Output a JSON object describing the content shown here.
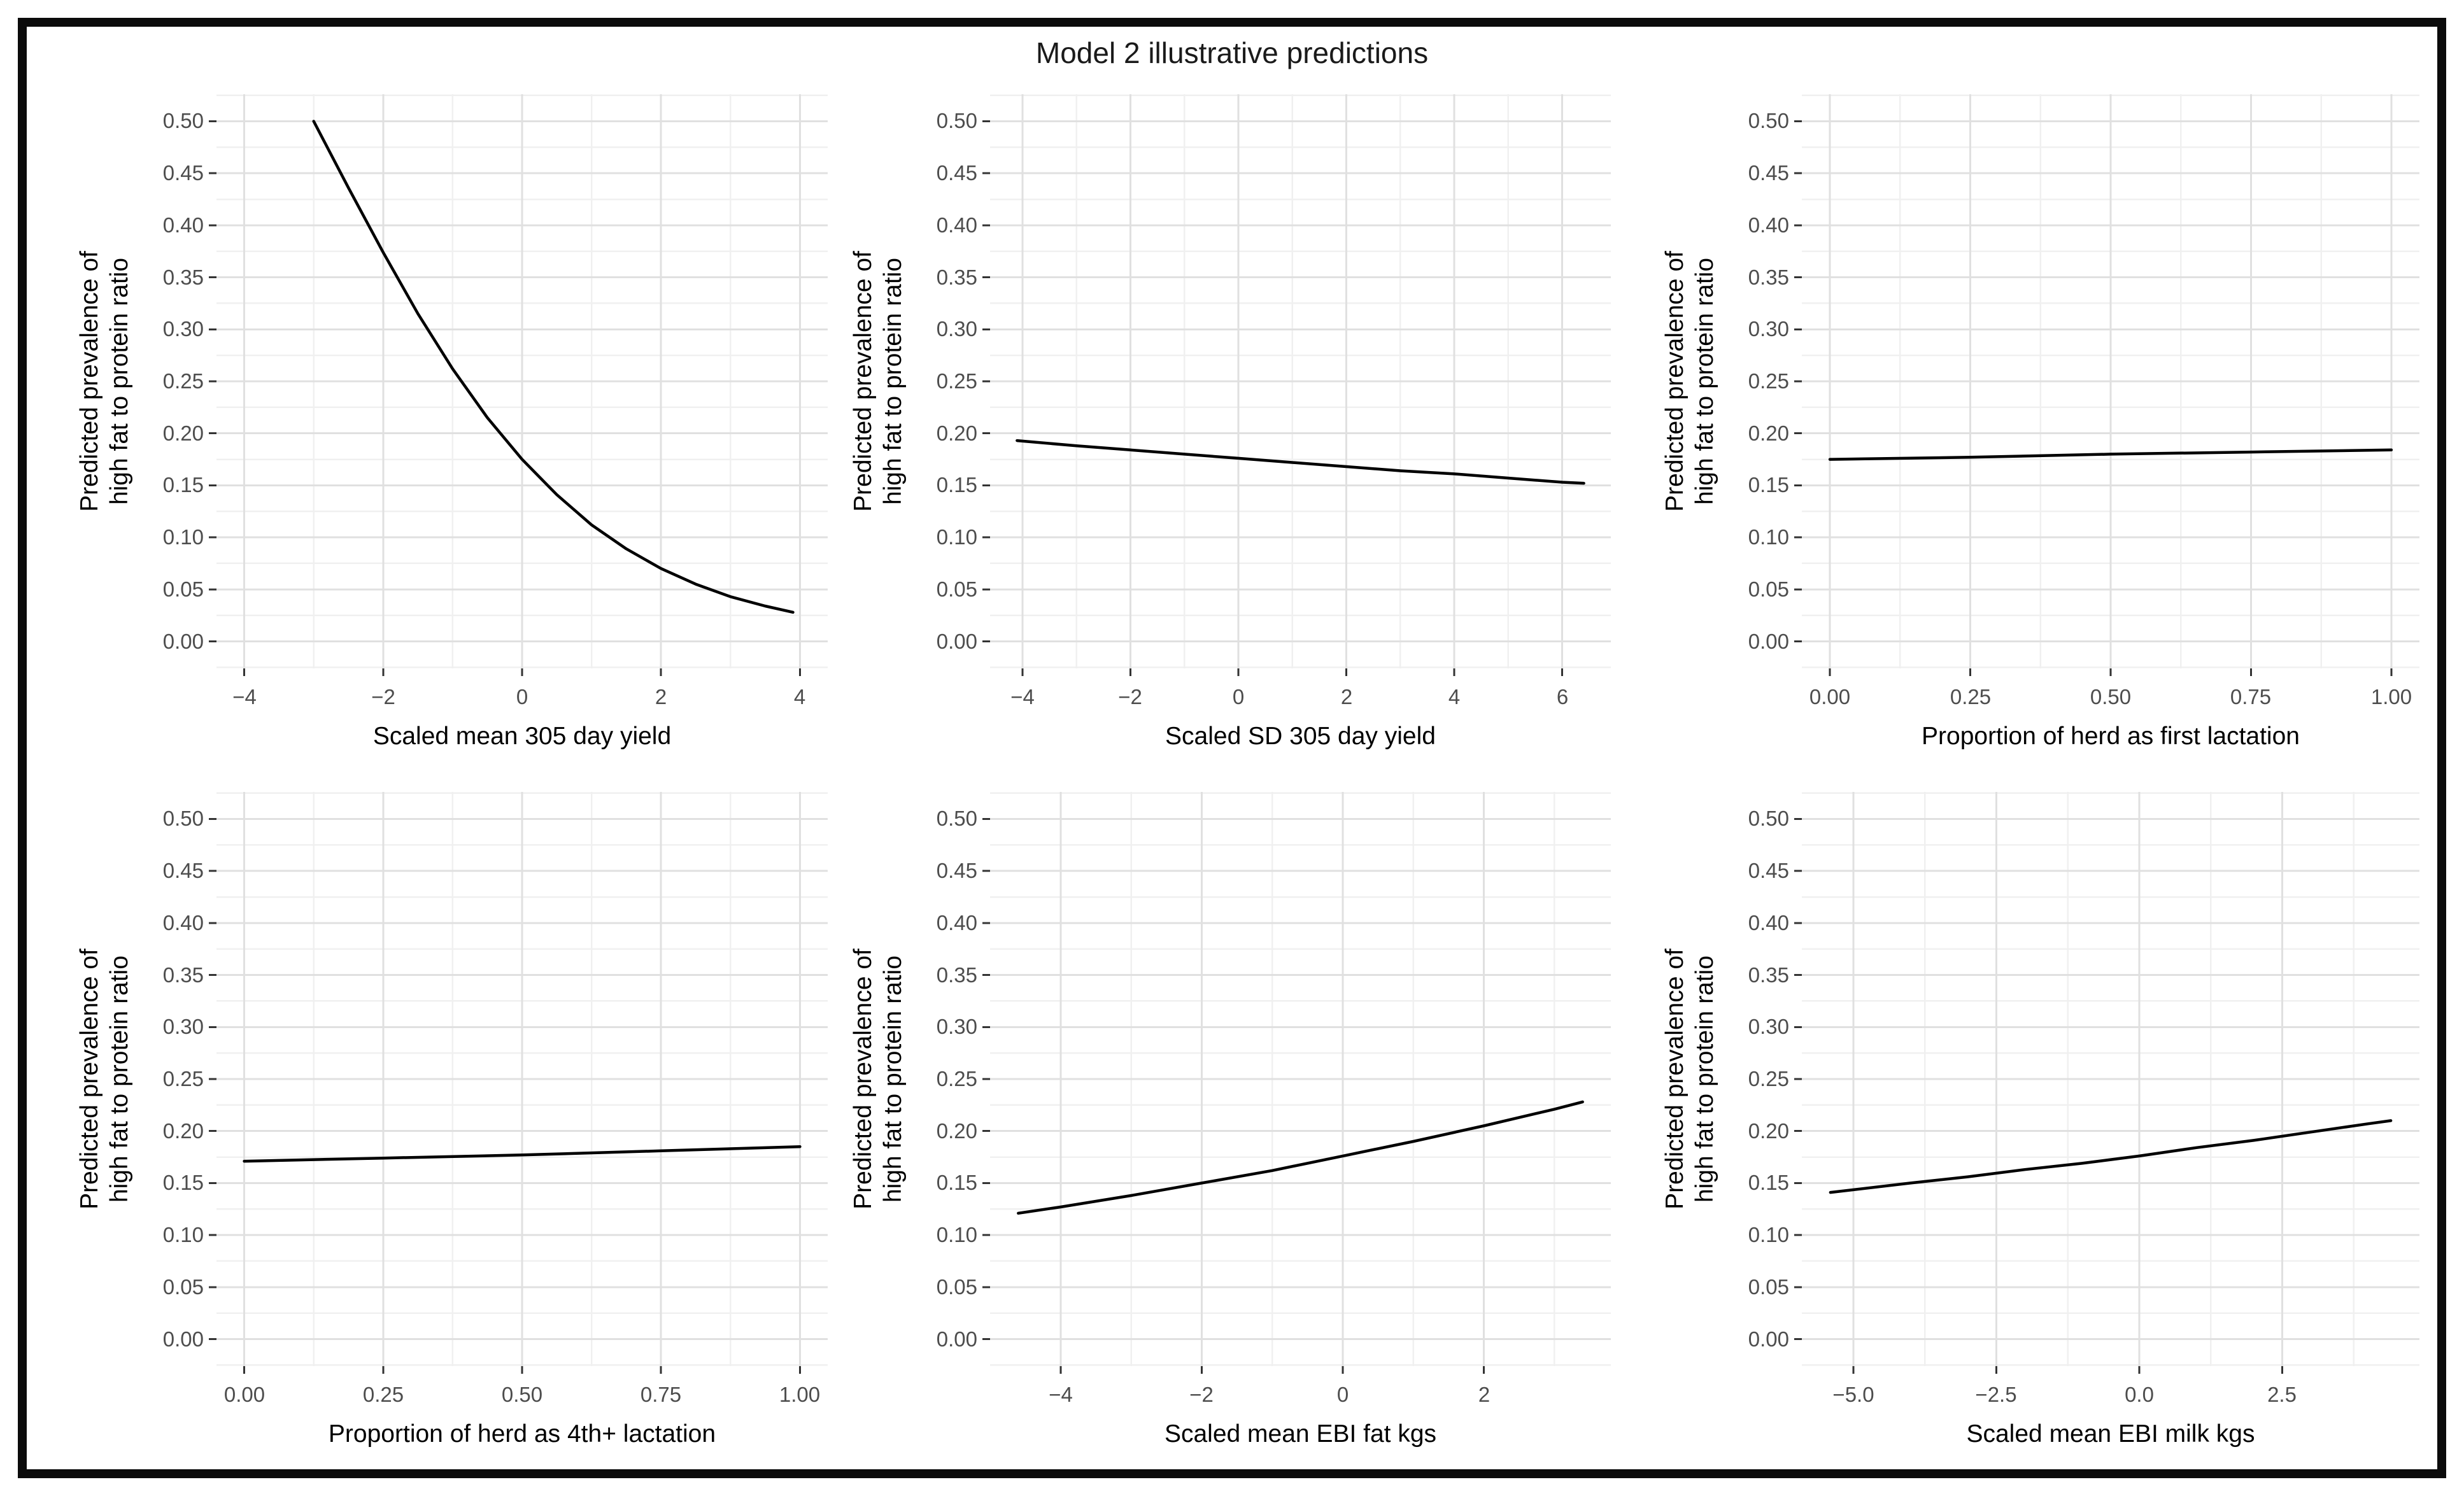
{
  "title": "Model 2 illustrative predictions",
  "colors": {
    "frame": "#0b0b0b",
    "background": "#ffffff",
    "grid_major": "#e0e0e0",
    "grid_minor": "#f0f0f0",
    "axis_tick": "#333333",
    "tick_label": "#4d4d4d",
    "axis_title": "#000000",
    "line": "#000000"
  },
  "y_axis": {
    "title": "Predicted prevalence of high fat to protein ratio",
    "title_lines": [
      "Predicted prevalence of",
      "high fat to protein ratio"
    ],
    "tick_values": [
      0.0,
      0.05,
      0.1,
      0.15,
      0.2,
      0.25,
      0.3,
      0.35,
      0.4,
      0.45,
      0.5
    ],
    "tick_labels": [
      "0.00",
      "0.05",
      "0.10",
      "0.15",
      "0.20",
      "0.25",
      "0.30",
      "0.35",
      "0.40",
      "0.45",
      "0.50"
    ],
    "range": [
      -0.026,
      0.526
    ],
    "minor_step": 0.025
  },
  "chart_data": [
    {
      "type": "line",
      "xlabel": "Scaled mean 305 day yield",
      "ylabel": "Predicted prevalence of high fat to protein ratio",
      "x_range": [
        -4.4,
        4.4
      ],
      "x_major": {
        "values": [
          -4,
          -2,
          0,
          2,
          4
        ],
        "labels": [
          "−4",
          "−2",
          "0",
          "2",
          "4"
        ]
      },
      "x_minor": [
        -3,
        -1,
        1,
        3
      ],
      "x": [
        -3,
        -2.5,
        -2,
        -1.5,
        -1,
        -0.5,
        0,
        0.5,
        1,
        1.5,
        2,
        2.5,
        3,
        3.5,
        3.9
      ],
      "y": [
        0.5,
        0.436,
        0.374,
        0.315,
        0.262,
        0.215,
        0.175,
        0.141,
        0.112,
        0.089,
        0.07,
        0.055,
        0.043,
        0.034,
        0.028
      ]
    },
    {
      "type": "line",
      "xlabel": "Scaled SD 305 day yield",
      "ylabel": "Predicted prevalence of high fat to protein ratio",
      "x_range": [
        -4.6,
        6.9
      ],
      "x_major": {
        "values": [
          -4,
          -2,
          0,
          2,
          4,
          6
        ],
        "labels": [
          "−4",
          "−2",
          "0",
          "2",
          "4",
          "6"
        ]
      },
      "x_minor": [
        -3,
        -1,
        1,
        3,
        5
      ],
      "x": [
        -4.1,
        -3,
        -2,
        -1,
        0,
        1,
        2,
        3,
        4,
        5,
        6,
        6.4
      ],
      "y": [
        0.193,
        0.188,
        0.184,
        0.18,
        0.176,
        0.172,
        0.168,
        0.164,
        0.161,
        0.157,
        0.153,
        0.152
      ]
    },
    {
      "type": "line",
      "xlabel": "Proportion of herd as first lactation",
      "ylabel": "Predicted prevalence of high fat to protein ratio",
      "x_range": [
        -0.05,
        1.05
      ],
      "x_major": {
        "values": [
          0,
          0.25,
          0.5,
          0.75,
          1
        ],
        "labels": [
          "0.00",
          "0.25",
          "0.50",
          "0.75",
          "1.00"
        ]
      },
      "x_minor": [
        0.125,
        0.375,
        0.625,
        0.875
      ],
      "x": [
        0,
        0.25,
        0.5,
        0.75,
        1
      ],
      "y": [
        0.175,
        0.177,
        0.18,
        0.182,
        0.184
      ]
    },
    {
      "type": "line",
      "xlabel": "Proportion of herd as 4th+ lactation",
      "ylabel": "Predicted prevalence of high fat to protein ratio",
      "x_range": [
        -0.05,
        1.05
      ],
      "x_major": {
        "values": [
          0,
          0.25,
          0.5,
          0.75,
          1
        ],
        "labels": [
          "0.00",
          "0.25",
          "0.50",
          "0.75",
          "1.00"
        ]
      },
      "x_minor": [
        0.125,
        0.375,
        0.625,
        0.875
      ],
      "x": [
        0,
        0.25,
        0.5,
        0.75,
        1
      ],
      "y": [
        0.171,
        0.174,
        0.177,
        0.181,
        0.185
      ]
    },
    {
      "type": "line",
      "xlabel": "Scaled mean EBI fat kgs",
      "ylabel": "Predicted prevalence of high fat to protein ratio",
      "x_range": [
        -5.0,
        3.8
      ],
      "x_major": {
        "values": [
          -4,
          -2,
          0,
          2
        ],
        "labels": [
          "−4",
          "−2",
          "0",
          "2"
        ]
      },
      "x_minor": [
        -3,
        -1,
        1,
        3
      ],
      "x": [
        -4.6,
        -4,
        -3,
        -2,
        -1,
        0,
        1,
        2,
        3,
        3.4
      ],
      "y": [
        0.121,
        0.127,
        0.138,
        0.15,
        0.162,
        0.176,
        0.19,
        0.205,
        0.221,
        0.228
      ]
    },
    {
      "type": "line",
      "xlabel": "Scaled mean EBI milk kgs",
      "ylabel": "Predicted prevalence of high fat to protein ratio",
      "x_range": [
        -5.9,
        4.9
      ],
      "x_major": {
        "values": [
          -5,
          -2.5,
          0,
          2.5
        ],
        "labels": [
          "−5.0",
          "−2.5",
          "0.0",
          "2.5"
        ]
      },
      "x_minor": [
        -3.75,
        -1.25,
        1.25,
        3.75
      ],
      "x": [
        -5.4,
        -4,
        -3,
        -2,
        -1,
        0,
        1,
        2,
        3,
        4,
        4.4
      ],
      "y": [
        0.141,
        0.15,
        0.156,
        0.163,
        0.169,
        0.176,
        0.184,
        0.191,
        0.199,
        0.207,
        0.21
      ]
    }
  ]
}
